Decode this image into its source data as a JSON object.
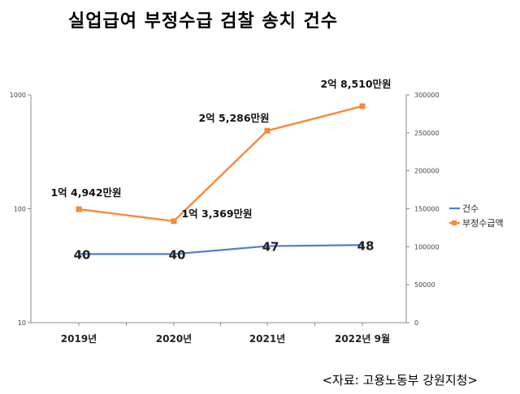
{
  "chart_data": {
    "type": "line",
    "title": "실업급여 부정수급 검찰 송치 건수",
    "source": "<자료: 고용노동부 강원지청>",
    "categories": [
      "2019년",
      "2020년",
      "2021년",
      "2022년 9월"
    ],
    "y_left": {
      "scale": "log",
      "range": [
        10,
        1000
      ],
      "ticks": [
        "10",
        "100",
        "1000"
      ]
    },
    "y_right": {
      "scale": "linear",
      "range": [
        0,
        300000
      ],
      "ticks": [
        "0",
        "50000",
        "100000",
        "150000",
        "200000",
        "250000",
        "300000"
      ]
    },
    "legend_position": "right",
    "series": [
      {
        "name": "건수",
        "axis": "left",
        "color": "#4f7fd1",
        "marker": "none",
        "values": [
          40,
          40,
          47,
          48
        ],
        "labels": [
          "40",
          "40",
          "47",
          "48"
        ]
      },
      {
        "name": "부정수급액",
        "axis": "right",
        "color": "#f7893a",
        "marker": "square",
        "values": [
          149420,
          133690,
          252860,
          285100
        ],
        "labels": [
          "1억 4,942만원",
          "1억 3,369만원",
          "2억 5,286만원",
          "2억 8,510만원"
        ]
      }
    ]
  }
}
